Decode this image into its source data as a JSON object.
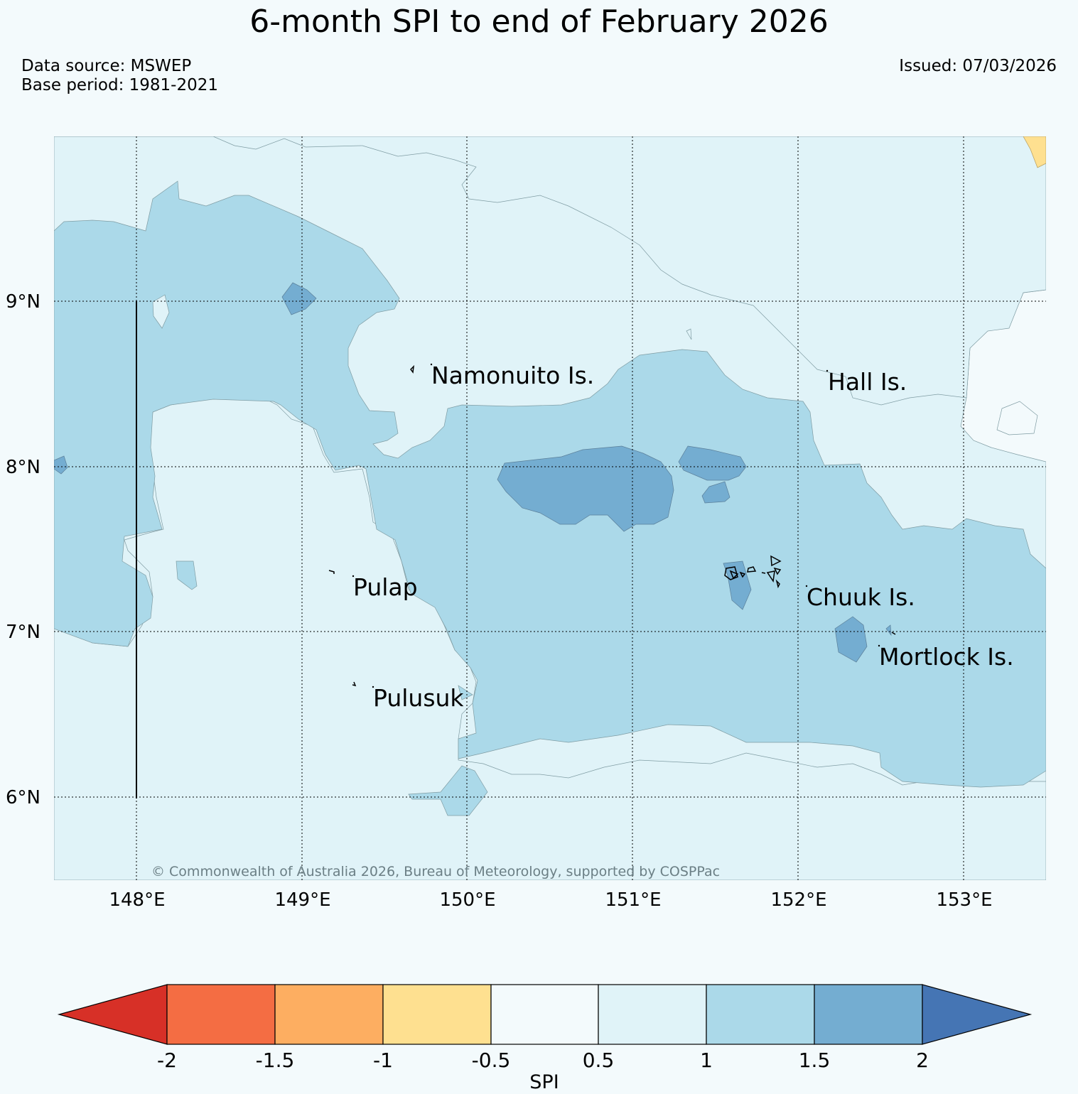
{
  "header": {
    "title": "6-month SPI to end of February 2026",
    "data_source": "Data source: MSWEP",
    "base_period": "Base period: 1981-2021",
    "issued": "Issued: 07/03/2026"
  },
  "map": {
    "lon_range": [
      147.5,
      153.5
    ],
    "lat_range": [
      5.5,
      10.0
    ],
    "lon_ticks": [
      {
        "value": 148,
        "label": "148°E"
      },
      {
        "value": 149,
        "label": "149°E"
      },
      {
        "value": 150,
        "label": "150°E"
      },
      {
        "value": 151,
        "label": "151°E"
      },
      {
        "value": 152,
        "label": "152°E"
      },
      {
        "value": 153,
        "label": "153°E"
      }
    ],
    "lat_ticks": [
      {
        "value": 6,
        "label": "6°N"
      },
      {
        "value": 7,
        "label": "7°N"
      },
      {
        "value": 8,
        "label": "8°N"
      },
      {
        "value": 9,
        "label": "9°N"
      }
    ],
    "places": [
      {
        "name": "Namonuito Is.",
        "lon": 149.78,
        "lat": 8.55
      },
      {
        "name": "Hall Is.",
        "lon": 152.18,
        "lat": 8.51
      },
      {
        "name": "Pulap",
        "lon": 149.3,
        "lat": 7.27
      },
      {
        "name": "Chuuk Is.",
        "lon": 152.05,
        "lat": 7.2
      },
      {
        "name": "Mortlock Is.",
        "lon": 152.48,
        "lat": 6.85
      },
      {
        "name": "Pulusuk",
        "lon": 149.43,
        "lat": 6.6
      }
    ],
    "copyright": "© Commonwealth of Australia 2026, Bureau of Meteorology, supported by COSPPac",
    "grid": true
  },
  "colorbar": {
    "label": "SPI",
    "tick_labels": [
      "-2",
      "-1.5",
      "-1",
      "-0.5",
      "0.5",
      "1",
      "1.5",
      "2"
    ],
    "colors": [
      "#d73027",
      "#f46d43",
      "#fdae61",
      "#fee090",
      "#f3fafc",
      "#e0f3f8",
      "#abd9e9",
      "#74add1",
      "#4575b4"
    ]
  }
}
